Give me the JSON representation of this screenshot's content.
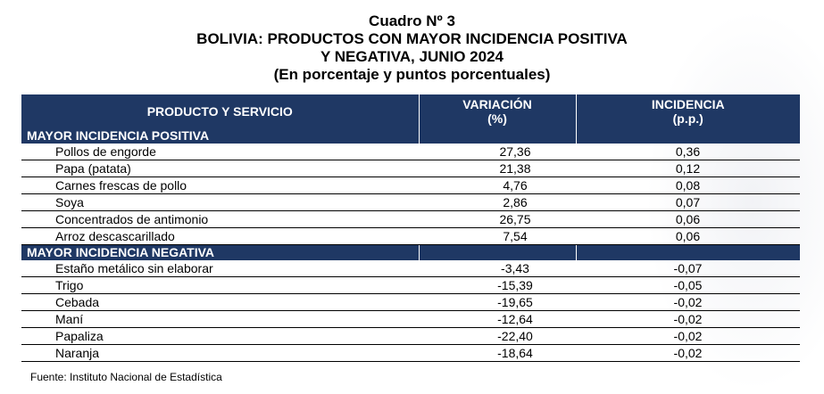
{
  "titles": {
    "line1": "Cuadro Nº 3",
    "line2": "BOLIVIA: PRODUCTOS CON MAYOR INCIDENCIA POSITIVA",
    "line3": "Y NEGATIVA, JUNIO 2024",
    "line4": "(En porcentaje y puntos porcentuales)"
  },
  "header": {
    "product": "PRODUCTO Y SERVICIO",
    "variation_line1": "VARIACIÓN",
    "variation_line2": "(%)",
    "incidence_line1": "INCIDENCIA",
    "incidence_line2": "(p.p.)"
  },
  "positive": {
    "label": "MAYOR INCIDENCIA POSITIVA",
    "rows": [
      {
        "product": "Pollos de engorde",
        "variation": "27,36",
        "incidence": "0,36"
      },
      {
        "product": "Papa (patata)",
        "variation": "21,38",
        "incidence": "0,12"
      },
      {
        "product": "Carnes frescas de pollo",
        "variation": "4,76",
        "incidence": "0,08"
      },
      {
        "product": "Soya",
        "variation": "2,86",
        "incidence": "0,07"
      },
      {
        "product": "Concentrados de antimonio",
        "variation": "26,75",
        "incidence": "0,06"
      },
      {
        "product": "Arroz descascarillado",
        "variation": "7,54",
        "incidence": "0,06"
      }
    ]
  },
  "negative": {
    "label": "MAYOR INCIDENCIA NEGATIVA",
    "rows": [
      {
        "product": "Estaño metálico sin elaborar",
        "variation": "-3,43",
        "incidence": "-0,07"
      },
      {
        "product": "Trigo",
        "variation": "-15,39",
        "incidence": "-0,05"
      },
      {
        "product": "Cebada",
        "variation": "-19,65",
        "incidence": "-0,02"
      },
      {
        "product": "Maní",
        "variation": "-12,64",
        "incidence": "-0,02"
      },
      {
        "product": "Papaliza",
        "variation": "-22,40",
        "incidence": "-0,02"
      },
      {
        "product": "Naranja",
        "variation": "-18,64",
        "incidence": "-0,02"
      }
    ]
  },
  "source": "Fuente: Instituto Nacional de Estadística"
}
